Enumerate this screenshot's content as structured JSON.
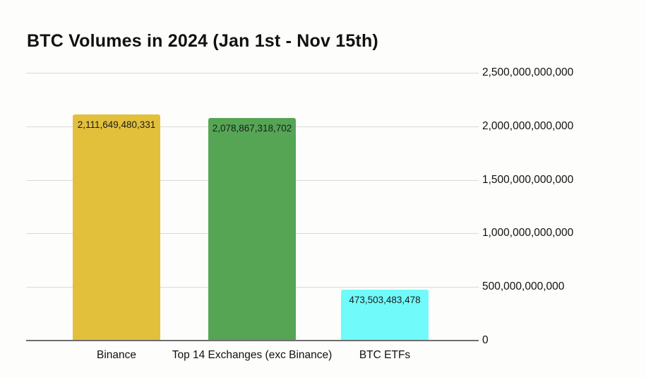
{
  "title": "BTC Volumes in 2024 (Jan 1st - Nov 15th)",
  "chart_data": {
    "type": "bar",
    "title": "BTC Volumes in 2024 (Jan 1st - Nov 15th)",
    "categories": [
      "Binance",
      "Top 14 Exchanges (exc Binance)",
      "BTC ETFs"
    ],
    "values": [
      2111649480331,
      2078867318702,
      473503483478
    ],
    "value_labels": [
      "2,111,649,480,331",
      "2,078,867,318,702",
      "473,503,483,478"
    ],
    "bar_colors": [
      "#e2c03c",
      "#55a555",
      "#70fafa"
    ],
    "xlabel": "",
    "ylabel": "",
    "ylim": [
      0,
      2500000000000
    ],
    "y_tick_values": [
      0,
      500000000000,
      1000000000000,
      1500000000000,
      2000000000000,
      2500000000000
    ],
    "y_tick_labels": [
      "0",
      "500,000,000,000",
      "1,000,000,000,000",
      "1,500,000,000,000",
      "2,000,000,000,000",
      "2,500,000,000,000"
    ],
    "grid": true,
    "legend": false,
    "y_axis_side": "right"
  },
  "colors": {
    "background": "#fdfdfb",
    "gridline": "#d9d9d9",
    "axis_line": "#6e6e6e",
    "text": "#111111"
  }
}
